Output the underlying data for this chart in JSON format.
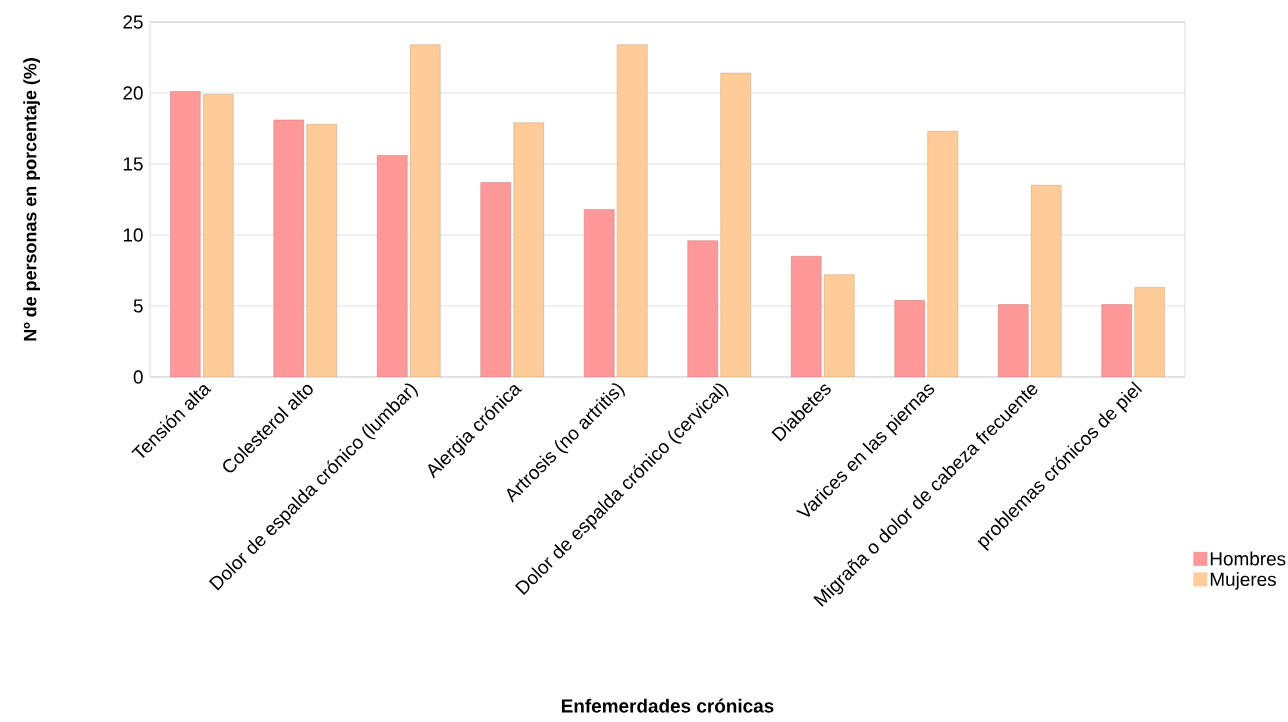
{
  "chart_data": {
    "type": "bar",
    "xlabel": "Enfemerdades crónicas",
    "ylabel": "Nº de personas en porcentaje (%)",
    "categories": [
      "Tensión alta",
      "Colesterol alto",
      "Dolor de espalda crónico (lumbar)",
      "Alergia crónica",
      "Artrosis (no artritis)",
      "Dolor de espalda crónico (cervical)",
      "Diabetes",
      "Varices en las piernas",
      "Migraña o dolor de cabeza frecuente",
      "problemas crónicos de piel"
    ],
    "series": [
      {
        "name": "Hombres",
        "color": "#ff9999",
        "values": [
          20.1,
          18.1,
          15.6,
          13.7,
          11.8,
          9.6,
          8.5,
          5.4,
          5.1,
          5.1
        ]
      },
      {
        "name": "Mujeres",
        "color": "#ffcc99",
        "values": [
          19.9,
          17.8,
          23.4,
          17.9,
          23.4,
          21.4,
          7.2,
          17.3,
          13.5,
          6.3
        ]
      }
    ],
    "ylim": [
      0,
      25
    ],
    "yticks": [
      0,
      5,
      10,
      15,
      20,
      25
    ],
    "grid": "y",
    "legend": "bottom right"
  }
}
